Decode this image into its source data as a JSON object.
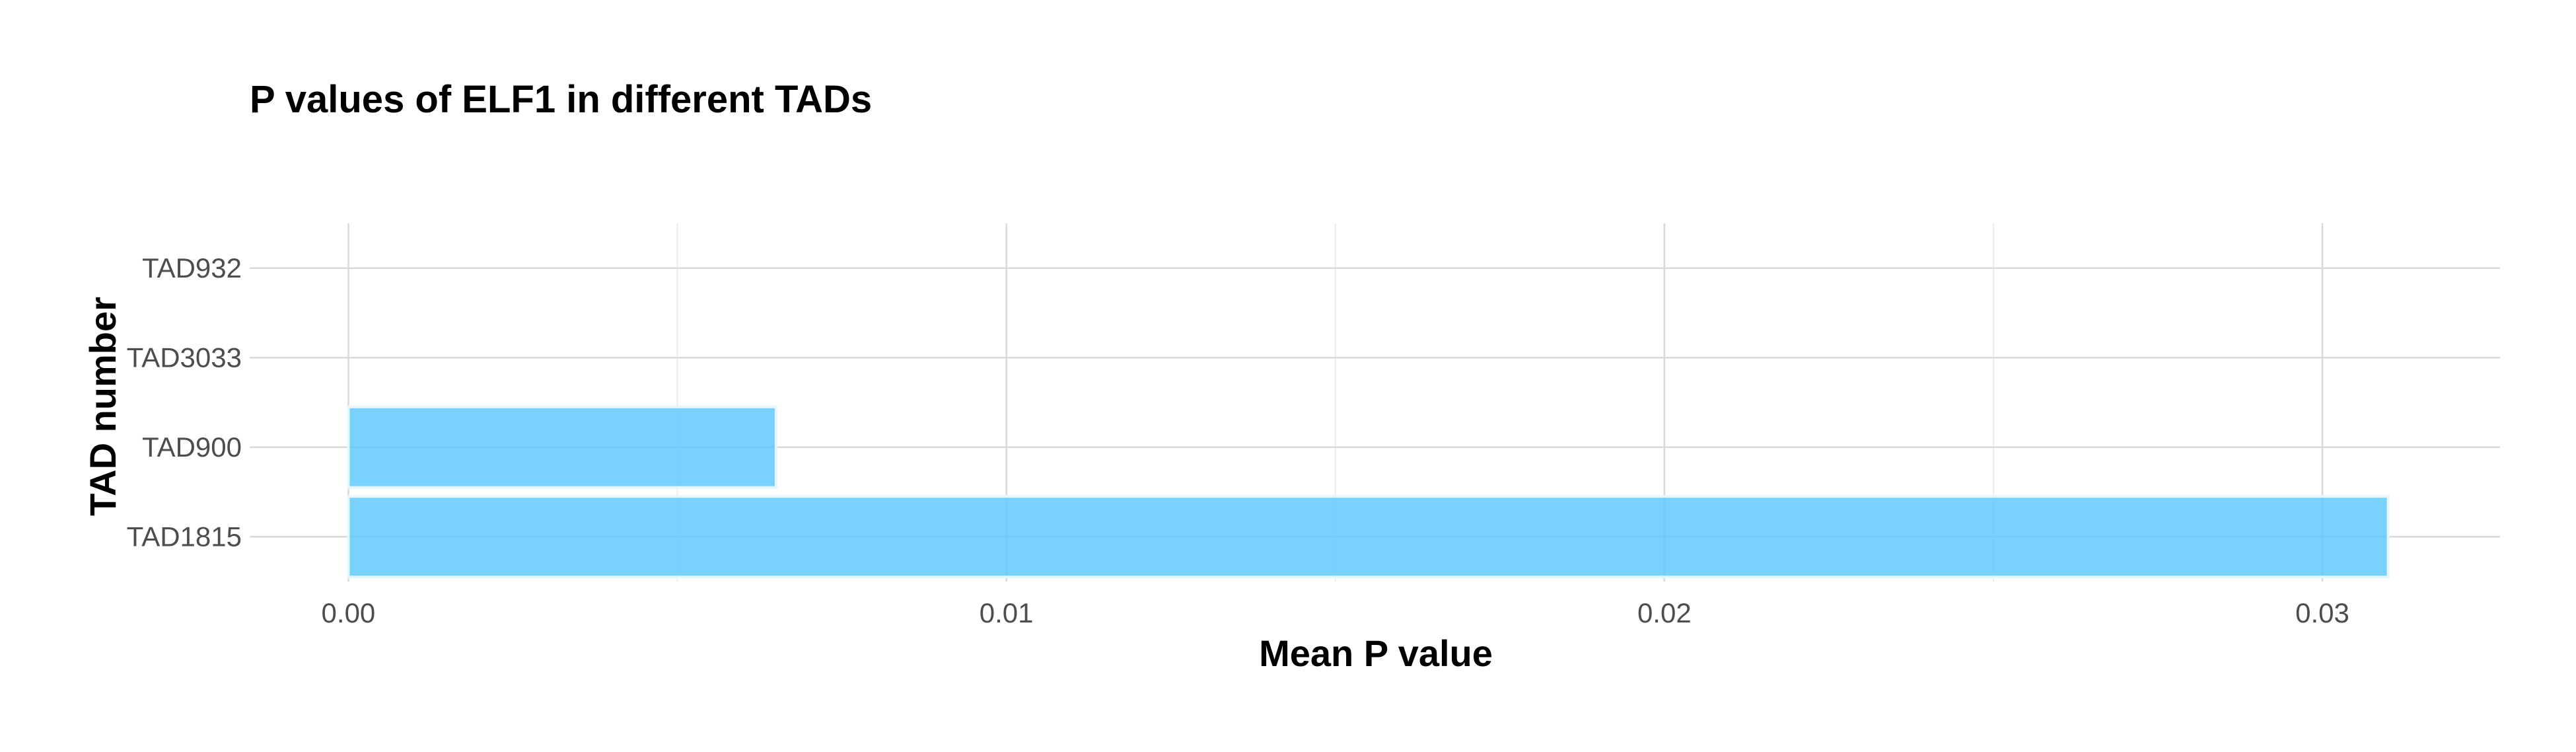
{
  "chart_data": {
    "type": "bar",
    "orientation": "horizontal",
    "title": "P values of ELF1 in different TADs",
    "xlabel": "Mean P value",
    "ylabel": "TAD number",
    "categories": [
      "TAD932",
      "TAD3033",
      "TAD900",
      "TAD1815"
    ],
    "values": [
      0.0,
      0.0,
      0.0065,
      0.031
    ],
    "xlim": [
      -0.0015,
      0.0327
    ],
    "x_ticks": [
      0.0,
      0.01,
      0.02,
      0.03
    ],
    "x_tick_labels": [
      "0.00",
      "0.01",
      "0.02",
      "0.03"
    ],
    "grid": true,
    "bar_color": "#5bc8fd",
    "legend": "none"
  }
}
